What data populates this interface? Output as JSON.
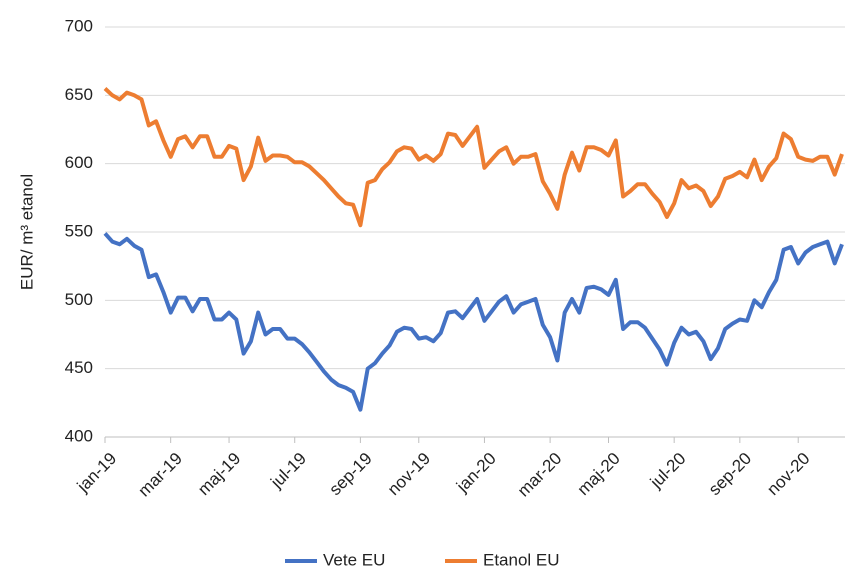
{
  "chart_data": {
    "type": "line",
    "y_label": "EUR/ m³ etanol",
    "categories": [
      "jan-19",
      null,
      null,
      null,
      null,
      null,
      null,
      null,
      null,
      "mar-19",
      null,
      null,
      null,
      null,
      null,
      null,
      null,
      "maj-19",
      null,
      null,
      null,
      null,
      null,
      null,
      null,
      null,
      "jul-19",
      null,
      null,
      null,
      null,
      null,
      null,
      null,
      null,
      "sep-19",
      null,
      null,
      null,
      null,
      null,
      null,
      null,
      "nov-19",
      null,
      null,
      null,
      null,
      null,
      null,
      null,
      null,
      "jan-20",
      null,
      null,
      null,
      null,
      null,
      null,
      null,
      null,
      "mar-20",
      null,
      null,
      null,
      null,
      null,
      null,
      null,
      "maj-20",
      null,
      null,
      null,
      null,
      null,
      null,
      null,
      null,
      "jul-20",
      null,
      null,
      null,
      null,
      null,
      null,
      null,
      null,
      "sep-20",
      null,
      null,
      null,
      null,
      null,
      null,
      null,
      "nov-20",
      null,
      null,
      null,
      null,
      null,
      null
    ],
    "series": [
      {
        "name": "Vete EU",
        "color": "#4472c4",
        "values": [
          549,
          543,
          541,
          545,
          540,
          537,
          517,
          519,
          506,
          491,
          502,
          502,
          492,
          501,
          501,
          486,
          486,
          491,
          486,
          461,
          470,
          491,
          475,
          479,
          479,
          472,
          472,
          468,
          462,
          455,
          448,
          442,
          438,
          436,
          433,
          420,
          450,
          454,
          461,
          467,
          477,
          480,
          479,
          472,
          473,
          470,
          476,
          491,
          492,
          487,
          494,
          501,
          485,
          492,
          499,
          503,
          491,
          497,
          499,
          501,
          482,
          473,
          456,
          491,
          501,
          491,
          509,
          510,
          508,
          504,
          515,
          479,
          484,
          484,
          480,
          472,
          464,
          453,
          469,
          480,
          475,
          477,
          470,
          457,
          465,
          479,
          483,
          486,
          485,
          500,
          495,
          506,
          515,
          537,
          539,
          527,
          535,
          539,
          541,
          543,
          527,
          541
        ]
      },
      {
        "name": "Etanol EU",
        "color": "#ed7d31",
        "values": [
          655,
          650,
          647,
          652,
          650,
          647,
          628,
          631,
          617,
          605,
          618,
          620,
          612,
          620,
          620,
          605,
          605,
          613,
          611,
          588,
          598,
          619,
          602,
          606,
          606,
          605,
          601,
          601,
          598,
          593,
          588,
          582,
          576,
          571,
          570,
          555,
          586,
          588,
          596,
          601,
          609,
          612,
          611,
          603,
          606,
          602,
          607,
          622,
          621,
          613,
          620,
          627,
          597,
          603,
          609,
          612,
          600,
          605,
          605,
          607,
          587,
          578,
          567,
          592,
          608,
          595,
          612,
          612,
          610,
          606,
          617,
          576,
          580,
          585,
          585,
          578,
          572,
          561,
          571,
          588,
          582,
          584,
          580,
          569,
          576,
          589,
          591,
          594,
          590,
          603,
          588,
          598,
          604,
          622,
          618,
          605,
          603,
          602,
          605,
          605,
          592,
          607
        ]
      }
    ],
    "ylim": [
      400,
      700
    ],
    "yticks": [
      400,
      450,
      500,
      550,
      600,
      650,
      700
    ],
    "grid": true,
    "legend": "bottom"
  }
}
